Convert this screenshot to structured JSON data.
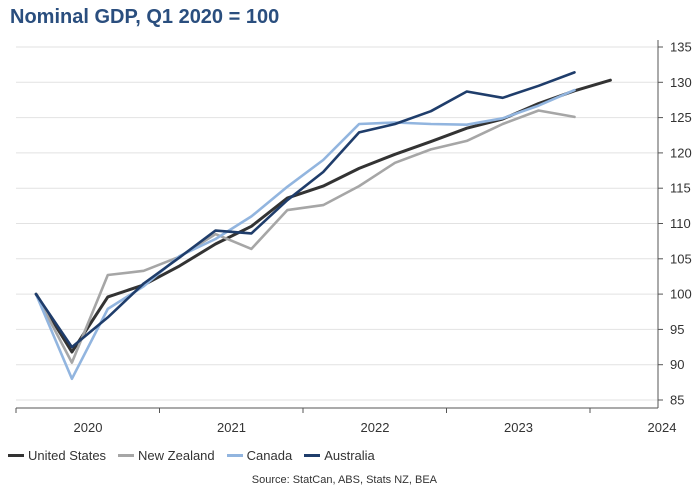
{
  "chart_data": {
    "type": "line",
    "title": "Nominal GDP, Q1 2020 = 100",
    "source": "Source: StatCan, ABS, Stats NZ, BEA",
    "ylim": [
      85,
      135
    ],
    "yticks": [
      85,
      90,
      95,
      100,
      105,
      110,
      115,
      120,
      125,
      130,
      135
    ],
    "year_labels": [
      "2020",
      "2021",
      "2022",
      "2023",
      "2024"
    ],
    "grid": true,
    "legend_position": "bottom-left",
    "x": [
      "2020Q1",
      "2020Q2",
      "2020Q3",
      "2020Q4",
      "2021Q1",
      "2021Q2",
      "2021Q3",
      "2021Q4",
      "2022Q1",
      "2022Q2",
      "2022Q3",
      "2022Q4",
      "2023Q1",
      "2023Q2",
      "2023Q3",
      "2023Q4",
      "2024Q1",
      "2024Q2"
    ],
    "series": [
      {
        "name": "United States",
        "color": "#333333",
        "values": [
          100,
          91.8,
          99.6,
          101.3,
          104.0,
          107.1,
          109.6,
          113.6,
          115.3,
          117.8,
          119.8,
          121.6,
          123.5,
          124.8,
          127.0,
          128.8,
          130.3,
          null
        ]
      },
      {
        "name": "New Zealand",
        "color": "#a6a6a6",
        "values": [
          100,
          90.3,
          102.7,
          103.3,
          105.3,
          108.5,
          106.4,
          111.9,
          112.6,
          115.3,
          118.6,
          120.5,
          121.7,
          124.1,
          126.0,
          125.1,
          null,
          null
        ]
      },
      {
        "name": "Canada",
        "color": "#92b5df",
        "values": [
          100,
          88.0,
          97.9,
          101.1,
          105.4,
          107.8,
          111.0,
          115.2,
          119.0,
          124.1,
          124.3,
          124.1,
          124.0,
          124.9,
          126.7,
          128.9,
          null,
          null
        ]
      },
      {
        "name": "Australia",
        "color": "#1f3d6b",
        "values": [
          100,
          92.5,
          96.7,
          101.5,
          105.2,
          109.0,
          108.6,
          113.3,
          117.3,
          122.9,
          124.1,
          125.9,
          128.7,
          127.8,
          129.5,
          131.4,
          null,
          null
        ]
      }
    ]
  }
}
